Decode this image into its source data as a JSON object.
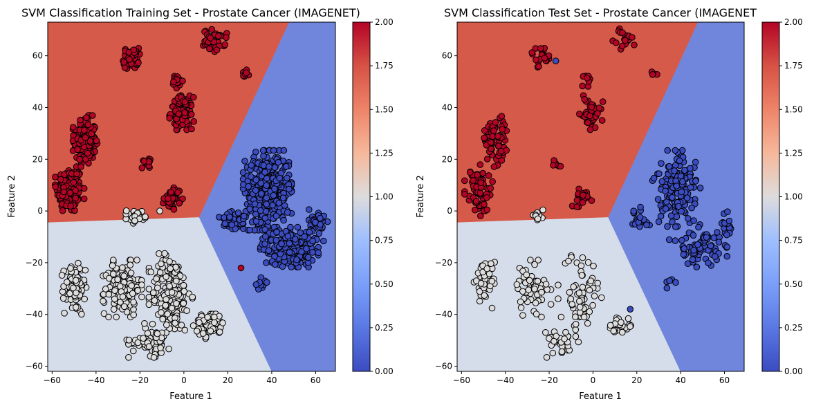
{
  "chart_data": [
    {
      "type": "scatter",
      "title": "SVM Classification Training Set - Prostate Cancer (IMAGENET)",
      "xlabel": "Feature 1",
      "ylabel": "Feature 2",
      "xlim": [
        -62,
        69
      ],
      "ylim": [
        -62,
        73
      ],
      "xticks": [
        -60,
        -40,
        -20,
        0,
        20,
        40,
        60
      ],
      "yticks": [
        -60,
        -40,
        -20,
        0,
        20,
        40,
        60
      ],
      "grid": false,
      "decision_regions": [
        {
          "class": 2,
          "color": "#d65a4a",
          "polygon": [
            [
              -62,
              -4.5
            ],
            [
              7,
              -2.5
            ],
            [
              48,
              73
            ],
            [
              -62,
              73
            ]
          ]
        },
        {
          "class": 1,
          "color": "#d5dcea",
          "polygon": [
            [
              -62,
              -4.5
            ],
            [
              7,
              -2.5
            ],
            [
              40,
              -62
            ],
            [
              -62,
              -62
            ]
          ]
        },
        {
          "class": 0,
          "color": "#7086dc",
          "polygon": [
            [
              7,
              -2.5
            ],
            [
              48,
              73
            ],
            [
              69,
              73
            ],
            [
              69,
              -62
            ],
            [
              40,
              -62
            ]
          ]
        }
      ],
      "clusters": [
        {
          "class": 2,
          "cx": -52,
          "cy": 8,
          "rx": 6,
          "ry": 9,
          "n": 170
        },
        {
          "class": 2,
          "cx": -45,
          "cy": 27,
          "rx": 5,
          "ry": 9,
          "n": 160
        },
        {
          "class": 2,
          "cx": -24,
          "cy": 59,
          "rx": 3.5,
          "ry": 4,
          "n": 50
        },
        {
          "class": 2,
          "cx": -1,
          "cy": 38,
          "rx": 5,
          "ry": 6,
          "n": 110
        },
        {
          "class": 2,
          "cx": -3,
          "cy": 50,
          "rx": 2.5,
          "ry": 3,
          "n": 20
        },
        {
          "class": 2,
          "cx": 14,
          "cy": 66,
          "rx": 5,
          "ry": 4,
          "n": 45
        },
        {
          "class": 2,
          "cx": 28,
          "cy": 53,
          "rx": 1.5,
          "ry": 1.5,
          "n": 8
        },
        {
          "class": 2,
          "cx": -17,
          "cy": 19,
          "rx": 2,
          "ry": 2.5,
          "n": 15
        },
        {
          "class": 2,
          "cx": -5,
          "cy": 5,
          "rx": 4,
          "ry": 4,
          "n": 45
        },
        {
          "class": 1,
          "cx": -22,
          "cy": -2,
          "rx": 4,
          "ry": 2.5,
          "n": 25
        },
        {
          "class": 1,
          "cx": -50,
          "cy": -30,
          "rx": 5,
          "ry": 9,
          "n": 100
        },
        {
          "class": 1,
          "cx": -28,
          "cy": -30,
          "rx": 8,
          "ry": 10,
          "n": 150
        },
        {
          "class": 1,
          "cx": -6,
          "cy": -32,
          "rx": 9,
          "ry": 15,
          "n": 180
        },
        {
          "class": 1,
          "cx": 12,
          "cy": -44,
          "rx": 7,
          "ry": 5,
          "n": 60
        },
        {
          "class": 1,
          "cx": -15,
          "cy": -50,
          "rx": 10,
          "ry": 6,
          "n": 60
        },
        {
          "class": 0,
          "cx": 38,
          "cy": 8,
          "rx": 10,
          "ry": 14,
          "n": 420
        },
        {
          "class": 0,
          "cx": 48,
          "cy": -14,
          "rx": 12,
          "ry": 7,
          "n": 200
        },
        {
          "class": 0,
          "cx": 22,
          "cy": -4,
          "rx": 6,
          "ry": 5,
          "n": 50
        },
        {
          "class": 0,
          "cx": 61,
          "cy": -5,
          "rx": 4,
          "ry": 6,
          "n": 40
        },
        {
          "class": 0,
          "cx": 35,
          "cy": -28,
          "rx": 2.5,
          "ry": 2.5,
          "n": 15
        }
      ],
      "extra_points": [
        {
          "class": 2,
          "x": 26,
          "y": -22
        },
        {
          "class": 1,
          "x": -11,
          "y": 0
        }
      ],
      "colorbar": {
        "min": 0,
        "max": 2,
        "ticks": [
          "0.00",
          "0.25",
          "0.50",
          "0.75",
          "1.00",
          "1.25",
          "1.50",
          "1.75",
          "2.00"
        ],
        "colormap": "coolwarm"
      },
      "point_colors": {
        "0": "#3b4cc0",
        "1": "#dddddd",
        "2": "#b40426"
      }
    },
    {
      "type": "scatter",
      "title": "SVM Classification Test Set - Prostate Cancer (IMAGENET",
      "xlabel": "Feature 1",
      "ylabel": "Feature 2",
      "xlim": [
        -62,
        69
      ],
      "ylim": [
        -62,
        73
      ],
      "xticks": [
        -60,
        -40,
        -20,
        0,
        20,
        40,
        60
      ],
      "yticks": [
        -60,
        -40,
        -20,
        0,
        20,
        40,
        60
      ],
      "grid": false,
      "decision_regions": [
        {
          "class": 2,
          "color": "#d65a4a",
          "polygon": [
            [
              -62,
              -4.5
            ],
            [
              7,
              -2.5
            ],
            [
              48,
              73
            ],
            [
              -62,
              73
            ]
          ]
        },
        {
          "class": 1,
          "color": "#d5dcea",
          "polygon": [
            [
              -62,
              -4.5
            ],
            [
              7,
              -2.5
            ],
            [
              40,
              -62
            ],
            [
              -62,
              -62
            ]
          ]
        },
        {
          "class": 0,
          "color": "#7086dc",
          "polygon": [
            [
              7,
              -2.5
            ],
            [
              48,
              73
            ],
            [
              69,
              73
            ],
            [
              69,
              -62
            ],
            [
              40,
              -62
            ]
          ]
        }
      ],
      "clusters": [
        {
          "class": 2,
          "cx": -52,
          "cy": 8,
          "rx": 6,
          "ry": 9,
          "n": 70
        },
        {
          "class": 2,
          "cx": -45,
          "cy": 27,
          "rx": 5,
          "ry": 9,
          "n": 65
        },
        {
          "class": 2,
          "cx": -24,
          "cy": 60,
          "rx": 3.5,
          "ry": 4,
          "n": 22
        },
        {
          "class": 2,
          "cx": -1,
          "cy": 38,
          "rx": 5,
          "ry": 6,
          "n": 45
        },
        {
          "class": 2,
          "cx": -3,
          "cy": 50,
          "rx": 2.5,
          "ry": 3,
          "n": 8
        },
        {
          "class": 2,
          "cx": 14,
          "cy": 66,
          "rx": 5,
          "ry": 4,
          "n": 20
        },
        {
          "class": 2,
          "cx": 28,
          "cy": 53,
          "rx": 1.5,
          "ry": 1.5,
          "n": 4
        },
        {
          "class": 2,
          "cx": -17,
          "cy": 19,
          "rx": 2,
          "ry": 2.5,
          "n": 7
        },
        {
          "class": 2,
          "cx": -5,
          "cy": 5,
          "rx": 4,
          "ry": 4,
          "n": 20
        },
        {
          "class": 1,
          "cx": -24,
          "cy": -2,
          "rx": 4,
          "ry": 2.5,
          "n": 10
        },
        {
          "class": 1,
          "cx": -50,
          "cy": -28,
          "rx": 5,
          "ry": 9,
          "n": 40
        },
        {
          "class": 1,
          "cx": -28,
          "cy": -30,
          "rx": 8,
          "ry": 10,
          "n": 60
        },
        {
          "class": 1,
          "cx": -6,
          "cy": -32,
          "rx": 9,
          "ry": 15,
          "n": 70
        },
        {
          "class": 1,
          "cx": 12,
          "cy": -44,
          "rx": 7,
          "ry": 5,
          "n": 25
        },
        {
          "class": 1,
          "cx": -15,
          "cy": -50,
          "rx": 10,
          "ry": 6,
          "n": 25
        },
        {
          "class": 0,
          "cx": 38,
          "cy": 8,
          "rx": 10,
          "ry": 14,
          "n": 170
        },
        {
          "class": 0,
          "cx": 48,
          "cy": -14,
          "rx": 12,
          "ry": 7,
          "n": 80
        },
        {
          "class": 0,
          "cx": 22,
          "cy": -4,
          "rx": 6,
          "ry": 5,
          "n": 20
        },
        {
          "class": 0,
          "cx": 61,
          "cy": -5,
          "rx": 4,
          "ry": 6,
          "n": 16
        },
        {
          "class": 0,
          "cx": 35,
          "cy": -28,
          "rx": 2.5,
          "ry": 2.5,
          "n": 6
        }
      ],
      "extra_points": [
        {
          "class": 0,
          "x": -17,
          "y": 58
        },
        {
          "class": 0,
          "x": 17,
          "y": -38
        }
      ],
      "colorbar": {
        "min": 0,
        "max": 2,
        "ticks": [
          "0.00",
          "0.25",
          "0.50",
          "0.75",
          "1.00",
          "1.25",
          "1.50",
          "1.75",
          "2.00"
        ],
        "colormap": "coolwarm"
      },
      "point_colors": {
        "0": "#3b4cc0",
        "1": "#dddddd",
        "2": "#b40426"
      }
    }
  ]
}
